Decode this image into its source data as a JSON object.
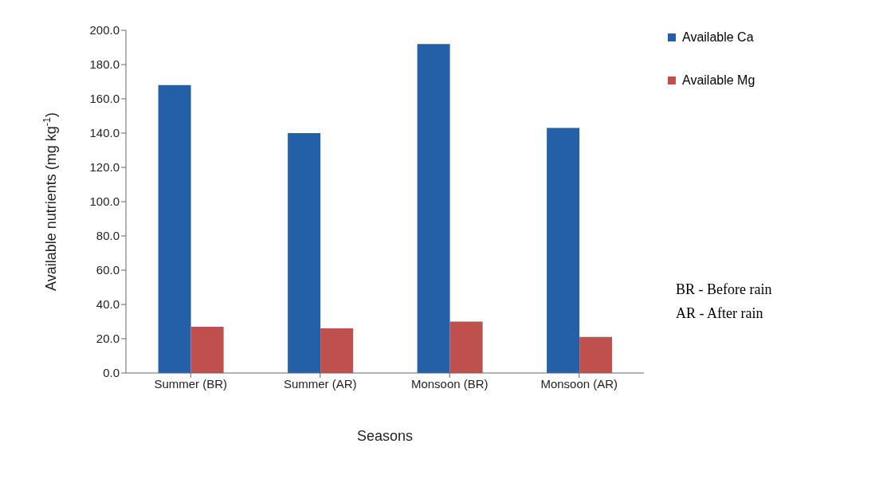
{
  "chart_data": {
    "type": "bar",
    "xlabel": "Seasons",
    "ylabel": "Available nutrients  (mg kg$^{-1}$)",
    "categories": [
      "Summer (BR)",
      "Summer (AR)",
      "Monsoon (BR)",
      "Monsoon (AR)"
    ],
    "series": [
      {
        "name": "Available Ca",
        "color": "#2460a7",
        "values": [
          168,
          140,
          192,
          143
        ]
      },
      {
        "name": "Available Mg",
        "color": "#c0504d",
        "values": [
          27,
          26,
          30,
          21
        ]
      }
    ],
    "ylim": [
      0,
      200
    ],
    "yticks": [
      {
        "value": 0,
        "label": "0.0"
      },
      {
        "value": 20,
        "label": "20.0"
      },
      {
        "value": 40,
        "label": "40.0"
      },
      {
        "value": 60,
        "label": "60.0"
      },
      {
        "value": 80,
        "label": "80.0"
      },
      {
        "value": 100,
        "label": "100.0"
      },
      {
        "value": 120,
        "label": "120.0"
      },
      {
        "value": 140,
        "label": "140.0"
      },
      {
        "value": 160,
        "label": "160.0"
      },
      {
        "value": 180,
        "label": "180.0"
      },
      {
        "value": 200,
        "label": "200.0"
      }
    ],
    "legend": "top right",
    "grid": false,
    "annotations": [
      "BR - Before rain",
      "AR - After rain"
    ]
  }
}
